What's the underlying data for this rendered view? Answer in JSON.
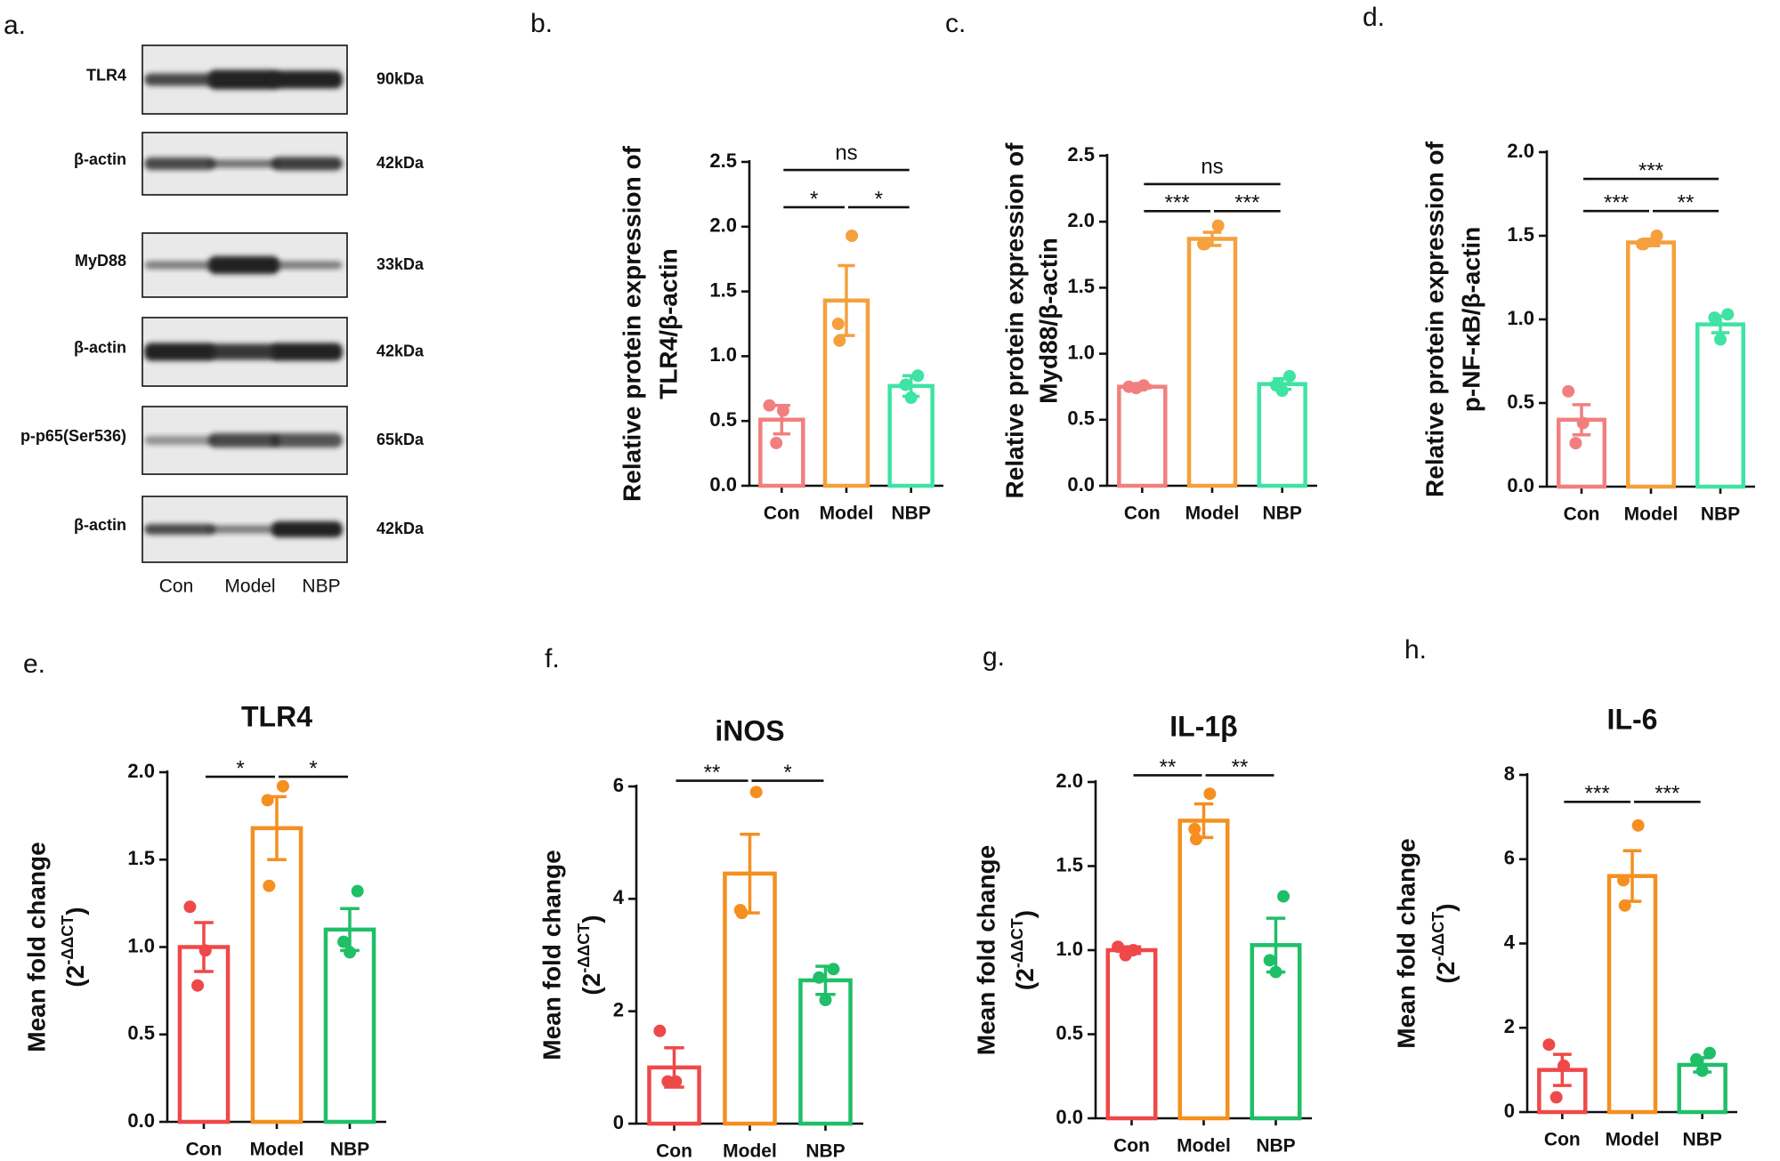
{
  "blot": {
    "panel_label": "a.",
    "rows": [
      {
        "label": "TLR4",
        "size": "90kDa"
      },
      {
        "label": "β-actin",
        "size": "42kDa"
      },
      {
        "label": "MyD88",
        "size": "33kDa"
      },
      {
        "label": "β-actin",
        "size": "42kDa"
      },
      {
        "label": "p-p65(Ser536)",
        "size": "65kDa"
      },
      {
        "label": "β-actin",
        "size": "42kDa"
      }
    ],
    "lanes": [
      "Con",
      "Model",
      "NBP"
    ]
  },
  "chart_data": [
    {
      "type": "bar",
      "panel_label": "b.",
      "ylabel": [
        "Relative protein expression of",
        "TLR4/β-actin"
      ],
      "categories": [
        "Con",
        "Model",
        "NBP"
      ],
      "colors": [
        "#f27f7f",
        "#f5a03c",
        "#3fe3a4"
      ],
      "values": [
        0.51,
        1.43,
        0.77
      ],
      "errors": [
        0.11,
        0.27,
        0.08
      ],
      "points": [
        [
          0.62,
          0.58,
          0.33
        ],
        [
          1.93,
          1.25,
          1.12
        ],
        [
          0.85,
          0.78,
          0.68
        ]
      ],
      "ylim": [
        0,
        2.5
      ],
      "yticks": [
        {
          "value": 0,
          "label": "0.0"
        },
        0.5,
        {
          "value": 1,
          "label": "1.0"
        },
        1.5,
        {
          "value": 2,
          "label": "2.0"
        },
        2.5
      ],
      "significance": [
        {
          "between": [
            "Con",
            "NBP"
          ],
          "label": "ns"
        },
        {
          "between": [
            "Con",
            "Model"
          ],
          "label": "*"
        },
        {
          "between": [
            "Model",
            "NBP"
          ],
          "label": "*"
        }
      ]
    },
    {
      "type": "bar",
      "panel_label": "c.",
      "ylabel": [
        "Relative protein expression of",
        "Myd88/β-actin"
      ],
      "categories": [
        "Con",
        "Model",
        "NBP"
      ],
      "colors": [
        "#f27f7f",
        "#f5a03c",
        "#3fe3a4"
      ],
      "values": [
        0.75,
        1.87,
        0.77
      ],
      "errors": [
        0.01,
        0.05,
        0.04
      ],
      "points": [
        [
          0.75,
          0.76,
          0.74
        ],
        [
          1.97,
          1.83,
          1.83
        ],
        [
          0.83,
          0.76,
          0.72
        ]
      ],
      "ylim": [
        0,
        2.5
      ],
      "yticks": [
        {
          "value": 0,
          "label": "0.0"
        },
        0.5,
        {
          "value": 1,
          "label": "1.0"
        },
        1.5,
        {
          "value": 2,
          "label": "2.0"
        },
        2.5
      ],
      "significance": [
        {
          "between": [
            "Con",
            "NBP"
          ],
          "label": "ns"
        },
        {
          "between": [
            "Con",
            "Model"
          ],
          "label": "***"
        },
        {
          "between": [
            "Model",
            "NBP"
          ],
          "label": "***"
        }
      ]
    },
    {
      "type": "bar",
      "panel_label": "d.",
      "ylabel": [
        "Relative protein expression of",
        "p-NF-κB/β-actin"
      ],
      "categories": [
        "Con",
        "Model",
        "NBP"
      ],
      "colors": [
        "#f27f7f",
        "#f5a03c",
        "#3fe3a4"
      ],
      "values": [
        0.4,
        1.46,
        0.97
      ],
      "errors": [
        0.09,
        0.02,
        0.05
      ],
      "points": [
        [
          0.57,
          0.38,
          0.26
        ],
        [
          1.5,
          1.45,
          1.45
        ],
        [
          1.03,
          1.01,
          0.88
        ]
      ],
      "ylim": [
        0,
        2
      ],
      "yticks": [
        {
          "value": 0,
          "label": "0.0"
        },
        0.5,
        {
          "value": 1,
          "label": "1.0"
        },
        1.5,
        {
          "value": 2,
          "label": "2.0"
        }
      ],
      "significance": [
        {
          "between": [
            "Con",
            "NBP"
          ],
          "label": "***"
        },
        {
          "between": [
            "Con",
            "Model"
          ],
          "label": "***"
        },
        {
          "between": [
            "Model",
            "NBP"
          ],
          "label": "**"
        }
      ]
    },
    {
      "type": "bar",
      "panel_label": "e.",
      "title": "TLR4",
      "ylabel": "Mean fold change",
      "ylabel_unit": [
        "(2",
        "-ΔΔCT",
        ")"
      ],
      "categories": [
        "Con",
        "Model",
        "NBP"
      ],
      "colors": [
        "#ef4848",
        "#f58f1f",
        "#1fbf68"
      ],
      "values": [
        1.0,
        1.68,
        1.1
      ],
      "errors": [
        0.14,
        0.18,
        0.12
      ],
      "points": [
        [
          1.23,
          0.98,
          0.78
        ],
        [
          1.92,
          1.84,
          1.35
        ],
        [
          1.32,
          1.03,
          0.97
        ]
      ],
      "ylim": [
        0,
        2
      ],
      "yticks": [
        {
          "value": 0,
          "label": "0.0"
        },
        0.5,
        {
          "value": 1,
          "label": "1.0"
        },
        1.5,
        {
          "value": 2,
          "label": "2.0"
        }
      ],
      "significance": [
        {
          "between": [
            "Con",
            "Model"
          ],
          "label": "*"
        },
        {
          "between": [
            "Model",
            "NBP"
          ],
          "label": "*"
        }
      ]
    },
    {
      "type": "bar",
      "panel_label": "f.",
      "title": "iNOS",
      "ylabel": "Mean fold change",
      "ylabel_unit": [
        "(2",
        "-ΔΔCT",
        ")"
      ],
      "categories": [
        "Con",
        "Model",
        "NBP"
      ],
      "colors": [
        "#ef4848",
        "#f58f1f",
        "#1fbf68"
      ],
      "values": [
        1.0,
        4.45,
        2.55
      ],
      "errors": [
        0.35,
        0.7,
        0.25
      ],
      "points": [
        [
          1.65,
          0.75,
          0.75
        ],
        [
          5.9,
          3.8,
          3.75
        ],
        [
          2.75,
          2.6,
          2.2
        ]
      ],
      "ylim": [
        0,
        6
      ],
      "yticks": [
        0,
        2,
        4,
        6
      ],
      "significance": [
        {
          "between": [
            "Con",
            "Model"
          ],
          "label": "**"
        },
        {
          "between": [
            "Model",
            "NBP"
          ],
          "label": "*"
        }
      ]
    },
    {
      "type": "bar",
      "panel_label": "g.",
      "title": "IL-1β",
      "ylabel": "Mean fold change",
      "ylabel_unit": [
        "(2",
        "-ΔΔCT",
        ")"
      ],
      "categories": [
        "Con",
        "Model",
        "NBP"
      ],
      "colors": [
        "#ef4848",
        "#f58f1f",
        "#1fbf68"
      ],
      "values": [
        1.0,
        1.77,
        1.03
      ],
      "errors": [
        0.02,
        0.1,
        0.16
      ],
      "points": [
        [
          1.02,
          1.0,
          0.97
        ],
        [
          1.93,
          1.72,
          1.66
        ],
        [
          1.32,
          0.94,
          0.87
        ]
      ],
      "ylim": [
        0,
        2
      ],
      "yticks": [
        {
          "value": 0,
          "label": "0.0"
        },
        0.5,
        {
          "value": 1,
          "label": "1.0"
        },
        1.5,
        {
          "value": 2,
          "label": "2.0"
        }
      ],
      "significance": [
        {
          "between": [
            "Con",
            "Model"
          ],
          "label": "**"
        },
        {
          "between": [
            "Model",
            "NBP"
          ],
          "label": "**"
        }
      ]
    },
    {
      "type": "bar",
      "panel_label": "h.",
      "title": "IL-6",
      "ylabel": "Mean fold change",
      "ylabel_unit": [
        "(2",
        "-ΔΔCT",
        ")"
      ],
      "categories": [
        "Con",
        "Model",
        "NBP"
      ],
      "colors": [
        "#ef4848",
        "#f58f1f",
        "#1fbf68"
      ],
      "values": [
        1.0,
        5.6,
        1.12
      ],
      "errors": [
        0.37,
        0.6,
        0.17
      ],
      "points": [
        [
          1.6,
          1.1,
          0.35
        ],
        [
          6.8,
          5.5,
          4.9
        ],
        [
          1.4,
          1.25,
          0.98
        ]
      ],
      "ylim": [
        0,
        8
      ],
      "yticks": [
        0,
        2,
        4,
        6,
        8
      ],
      "significance": [
        {
          "between": [
            "Con",
            "Model"
          ],
          "label": "***"
        },
        {
          "between": [
            "Model",
            "NBP"
          ],
          "label": "***"
        }
      ]
    }
  ]
}
